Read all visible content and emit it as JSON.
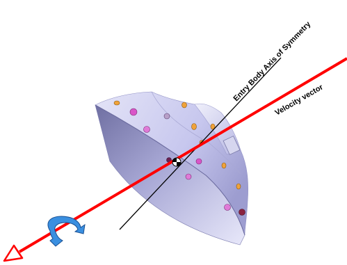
{
  "labels": {
    "axis_of_symmetry": "Entry Body Axis of Symmetry",
    "velocity_vector": "Velocity vector"
  },
  "icons": {
    "rotation": "rotation-arrow-icon",
    "center_of_mass": "center-of-mass-icon"
  },
  "colors": {
    "velocity_vector": "#ff0000",
    "axis": "#000000",
    "rotation_arrow": "#3a8fe0",
    "capsule_body": "#c9c9f2",
    "pink_markers": "#e07ad8",
    "orange_markers": "#f0a23a"
  }
}
